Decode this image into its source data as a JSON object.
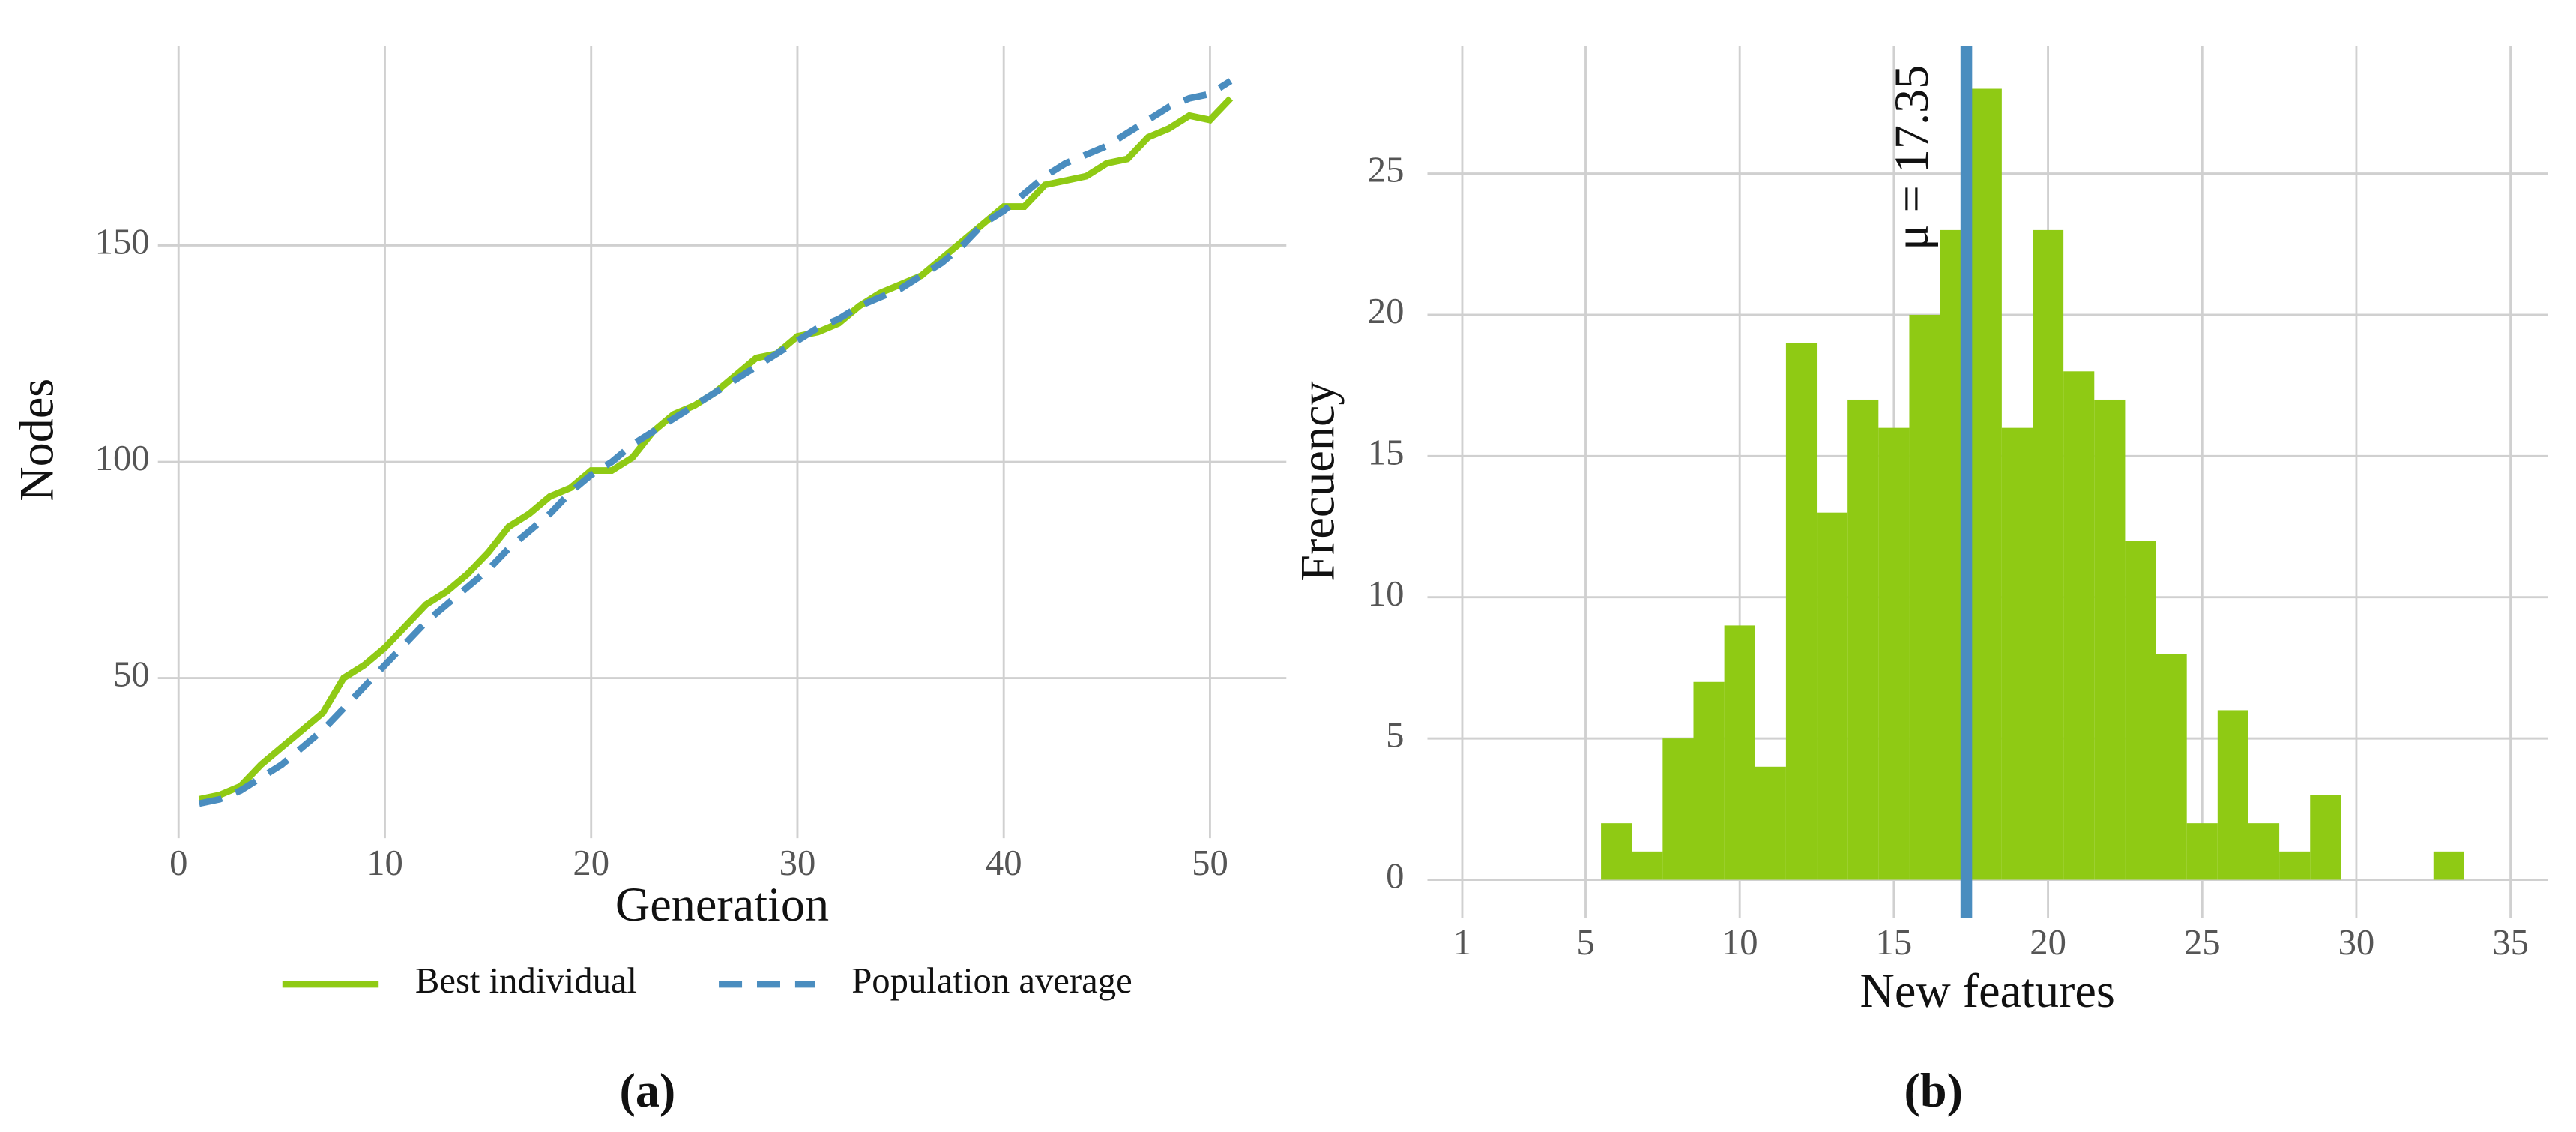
{
  "chart_data": [
    {
      "type": "line",
      "x_label": "Generation",
      "y_label": "Nodes",
      "caption": "(a)",
      "x": [
        1,
        2,
        3,
        4,
        5,
        6,
        7,
        8,
        9,
        10,
        11,
        12,
        13,
        14,
        15,
        16,
        17,
        18,
        19,
        20,
        21,
        22,
        23,
        24,
        25,
        26,
        27,
        28,
        29,
        30,
        31,
        32,
        33,
        34,
        35,
        36,
        37,
        38,
        39,
        40,
        41,
        42,
        43,
        44,
        45,
        46,
        47,
        48,
        49,
        50,
        51
      ],
      "series": [
        {
          "name": "Best individual",
          "color": "#8fca14",
          "dash": false,
          "values": [
            22,
            23,
            25,
            30,
            34,
            38,
            42,
            50,
            53,
            57,
            62,
            67,
            70,
            74,
            79,
            85,
            88,
            92,
            94,
            98,
            98,
            101,
            107,
            111,
            113,
            116,
            120,
            124,
            125,
            129,
            130,
            132,
            136,
            139,
            141,
            143,
            147,
            151,
            155,
            159,
            159,
            164,
            165,
            166,
            169,
            170,
            175,
            177,
            180,
            179,
            184
          ]
        },
        {
          "name": "Population average",
          "color": "#4a8dbf",
          "dash": true,
          "values": [
            21,
            22,
            24,
            27,
            30,
            34,
            38,
            43,
            48,
            53,
            58,
            63,
            67,
            71,
            75,
            80,
            84,
            88,
            93,
            97,
            100,
            104,
            107,
            110,
            113,
            116,
            119,
            122,
            125,
            128,
            131,
            133,
            136,
            138,
            140,
            143,
            146,
            150,
            155,
            158,
            162,
            166,
            169,
            171,
            173,
            176,
            179,
            182,
            184,
            185,
            188
          ]
        }
      ],
      "xlim": [
        -1,
        53.7
      ],
      "ylim": [
        13,
        196
      ],
      "xticks": [
        0,
        10,
        20,
        30,
        40,
        50
      ],
      "yticks": [
        50,
        100,
        150
      ],
      "grid": true,
      "legend": "bottom"
    },
    {
      "type": "histogram",
      "x_label": "New features",
      "y_label": "Frecuency",
      "caption": "(b)",
      "bins": [
        5.5,
        6.5,
        7.5,
        8.5,
        9.5,
        10.5,
        11.5,
        12.5,
        13.5,
        14.5,
        15.5,
        16.5,
        17.5,
        18.5,
        19.5,
        20.5,
        21.5,
        22.5,
        23.5,
        24.5,
        25.5,
        26.5,
        27.5,
        28.5,
        29.5,
        30.5,
        31.5,
        32.5,
        33.5
      ],
      "counts": [
        2,
        1,
        5,
        7,
        9,
        4,
        19,
        13,
        17,
        16,
        20,
        23,
        28,
        16,
        23,
        18,
        17,
        12,
        8,
        2,
        6,
        2,
        1,
        3,
        0,
        0,
        0,
        1
      ],
      "color": "#8fca14",
      "mean": 17.35,
      "mean_color": "#4a8dbf",
      "annotation": "μ = 17.35",
      "xlim": [
        -0.13,
        36.2
      ],
      "ylim": [
        -1.35,
        29.5
      ],
      "xticks": [
        1,
        5,
        10,
        15,
        20,
        25,
        30,
        35
      ],
      "yticks": [
        0,
        5,
        10,
        15,
        20,
        25
      ],
      "grid": true
    }
  ]
}
